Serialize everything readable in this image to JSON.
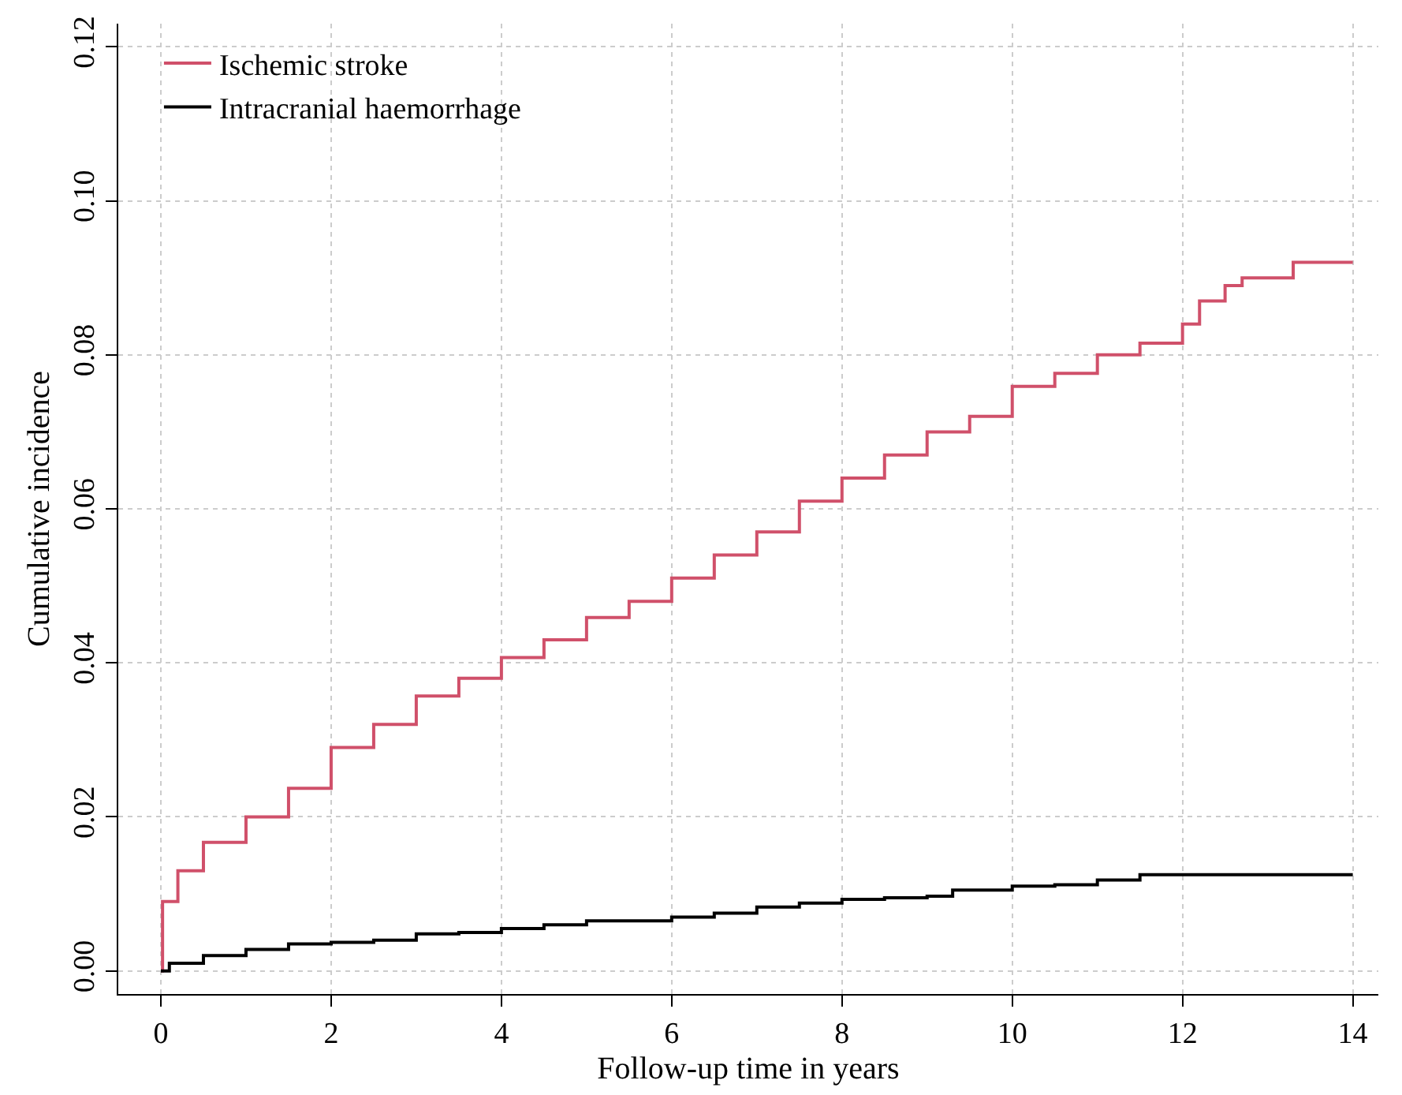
{
  "chart_data": {
    "type": "step",
    "xlabel": "Follow-up time in years",
    "ylabel": "Cumulative incidence",
    "xlim": [
      -0.5,
      14.3
    ],
    "xticks": [
      0,
      2,
      4,
      6,
      8,
      10,
      12,
      14
    ],
    "ylim": [
      -0.003,
      0.123
    ],
    "yticks": [
      {
        "value": 0,
        "label": "0.00"
      },
      {
        "value": 0.02,
        "label": "0.02"
      },
      {
        "value": 0.04,
        "label": "0.04"
      },
      {
        "value": 0.06,
        "label": "0.06"
      },
      {
        "value": 0.08,
        "label": "0.08"
      },
      {
        "value": 0.1,
        "label": "0.10"
      },
      {
        "value": 0.12,
        "label": "0.12"
      }
    ],
    "grid": true,
    "legend": "top left",
    "line_style": "solid",
    "marker": "none",
    "series": [
      {
        "name": "Ischemic stroke",
        "color": "#d0506a",
        "x": [
          0,
          0.02,
          0.2,
          0.5,
          1,
          1.5,
          2,
          2.5,
          3,
          3.5,
          4,
          4.5,
          5,
          5.5,
          6,
          6.5,
          7,
          7.5,
          8,
          8.5,
          9,
          9.5,
          10,
          10.5,
          11,
          11.5,
          12,
          12.2,
          12.5,
          12.7,
          13.3,
          14
        ],
        "values": [
          0,
          0.009,
          0.013,
          0.0167,
          0.02,
          0.0237,
          0.029,
          0.032,
          0.0357,
          0.038,
          0.0407,
          0.043,
          0.0459,
          0.048,
          0.051,
          0.054,
          0.057,
          0.061,
          0.064,
          0.067,
          0.07,
          0.072,
          0.0759,
          0.0776,
          0.08,
          0.0815,
          0.084,
          0.087,
          0.089,
          0.09,
          0.092,
          0.092
        ]
      },
      {
        "name": "Intracranial haemorrhage",
        "color": "#000000",
        "x": [
          0,
          0.1,
          0.5,
          1,
          1.5,
          2,
          2.5,
          3,
          3.5,
          4,
          4.5,
          5,
          6,
          6.5,
          7,
          7.5,
          8,
          8.5,
          9,
          9.3,
          10,
          10.5,
          11,
          11.5,
          14
        ],
        "values": [
          0,
          0.001,
          0.002,
          0.0028,
          0.0035,
          0.0037,
          0.004,
          0.0048,
          0.005,
          0.0055,
          0.006,
          0.0065,
          0.007,
          0.0075,
          0.0083,
          0.0088,
          0.0093,
          0.0095,
          0.0097,
          0.0105,
          0.011,
          0.0112,
          0.0118,
          0.0125,
          0.0125
        ]
      }
    ]
  }
}
